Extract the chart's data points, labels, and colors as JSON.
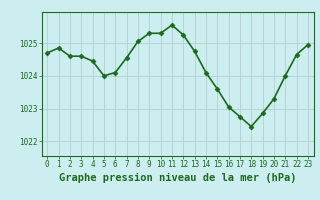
{
  "x": [
    0,
    1,
    2,
    3,
    4,
    5,
    6,
    7,
    8,
    9,
    10,
    11,
    12,
    13,
    14,
    15,
    16,
    17,
    18,
    19,
    20,
    21,
    22,
    23
  ],
  "y": [
    1024.7,
    1024.85,
    1024.6,
    1024.6,
    1024.45,
    1024.0,
    1024.1,
    1024.55,
    1025.05,
    1025.3,
    1025.3,
    1025.55,
    1025.25,
    1024.75,
    1024.1,
    1023.6,
    1023.05,
    1022.75,
    1022.45,
    1022.85,
    1023.3,
    1024.0,
    1024.65,
    1024.95
  ],
  "line_color": "#1a6b1a",
  "marker": "D",
  "marker_size": 2.5,
  "line_width": 1.2,
  "bg_color": "#cceef0",
  "grid_color": "#b0c8c8",
  "xlabel": "Graphe pression niveau de la mer (hPa)",
  "xlabel_fontsize": 7.5,
  "xlabel_color": "#1a6b1a",
  "ytick_labels": [
    "1022",
    "1023",
    "1024",
    "1025"
  ],
  "ytick_values": [
    1022,
    1023,
    1024,
    1025
  ],
  "ylim": [
    1021.55,
    1025.95
  ],
  "xlim": [
    -0.5,
    23.5
  ],
  "xtick_labels": [
    "0",
    "1",
    "2",
    "3",
    "4",
    "5",
    "6",
    "7",
    "8",
    "9",
    "10",
    "11",
    "12",
    "13",
    "14",
    "15",
    "16",
    "17",
    "18",
    "19",
    "20",
    "21",
    "22",
    "23"
  ],
  "tick_fontsize": 5.5,
  "tick_color": "#1a6b1a",
  "spine_color": "#1a6b1a"
}
